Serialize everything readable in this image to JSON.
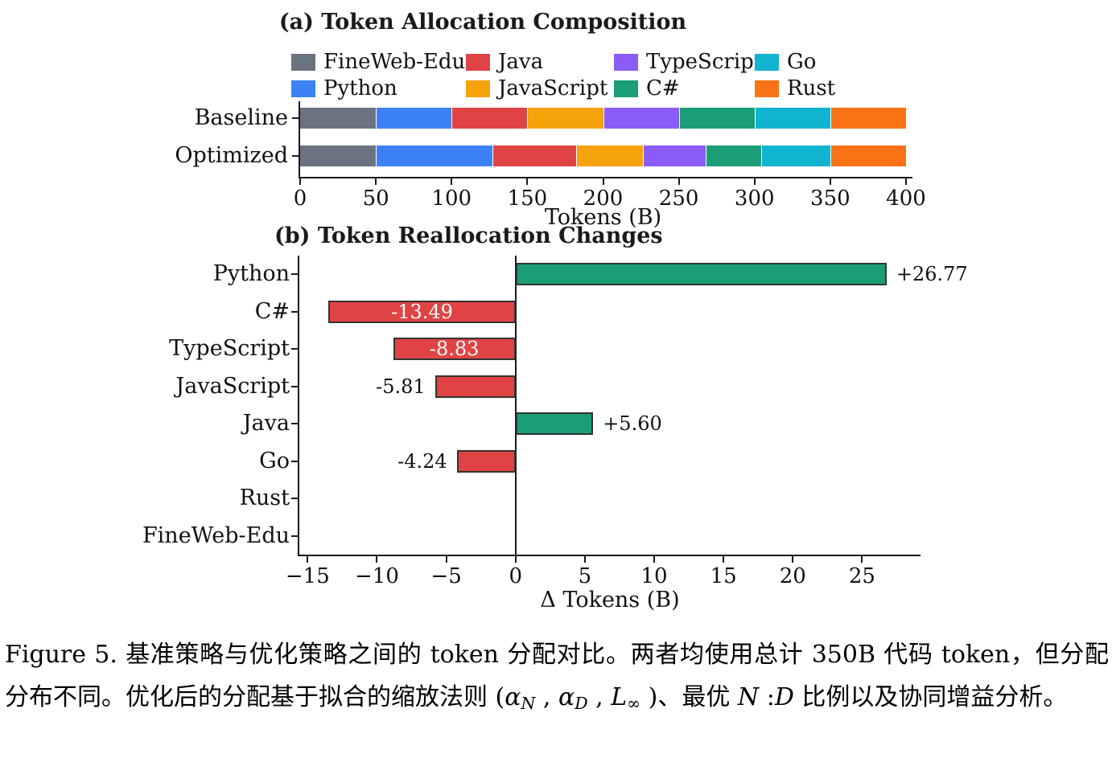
{
  "chart_data": [
    {
      "type": "bar",
      "stacked": true,
      "orientation": "horizontal",
      "title": "(a) Token Allocation Composition",
      "xlabel": "Tokens (B)",
      "xlim": [
        0,
        400
      ],
      "xticks": [
        0,
        50,
        100,
        150,
        200,
        250,
        300,
        350,
        400
      ],
      "xtick_labels": [
        "0",
        "50",
        "100",
        "150",
        "200",
        "250",
        "300",
        "350",
        "400"
      ],
      "categories": [
        "Baseline",
        "Optimized"
      ],
      "legend_position": "top",
      "legend_columns": 4,
      "series": [
        {
          "name": "FineWeb-Edu",
          "color": "#6b7280",
          "values": [
            50,
            50
          ]
        },
        {
          "name": "Python",
          "color": "#3c82f6",
          "values": [
            50,
            76.77
          ]
        },
        {
          "name": "Java",
          "color": "#e04343",
          "values": [
            50,
            55.6
          ]
        },
        {
          "name": "JavaScript",
          "color": "#f5a30b",
          "values": [
            50,
            44.19
          ]
        },
        {
          "name": "TypeScript",
          "color": "#8b5cf6",
          "values": [
            50,
            41.17
          ]
        },
        {
          "name": "C#",
          "color": "#1b9e77",
          "values": [
            50,
            36.51
          ]
        },
        {
          "name": "Go",
          "color": "#11b4ce",
          "values": [
            50,
            45.76
          ]
        },
        {
          "name": "Rust",
          "color": "#f97316",
          "values": [
            50,
            50
          ]
        }
      ]
    },
    {
      "type": "bar",
      "orientation": "horizontal",
      "title": "(b) Token Reallocation Changes",
      "xlabel": "Δ Tokens (B)",
      "xlim": [
        -15.6,
        29.1
      ],
      "xticks": [
        -15,
        -10,
        -5,
        0,
        5,
        10,
        15,
        20,
        25
      ],
      "xtick_labels": [
        "−15",
        "−10",
        "−5",
        "0",
        "5",
        "10",
        "15",
        "20",
        "25"
      ],
      "categories": [
        "Python",
        "C#",
        "TypeScript",
        "JavaScript",
        "Java",
        "Go",
        "Rust",
        "FineWeb-Edu"
      ],
      "values": [
        26.77,
        -13.49,
        -8.83,
        -5.81,
        5.6,
        -4.24,
        0,
        0
      ],
      "bar_labels": [
        "+26.77",
        "-13.49",
        "-8.83",
        "-5.81",
        "+5.60",
        "-4.24",
        "",
        ""
      ],
      "bar_label_placement": [
        "outside",
        "inside",
        "inside",
        "outside",
        "outside",
        "outside",
        "none",
        "none"
      ],
      "colors": {
        "positive": "#1b9e77",
        "negative": "#e04343",
        "edge": "#333333"
      },
      "zero_line": true,
      "grid": false
    }
  ],
  "caption": {
    "segments": [
      {
        "type": "text",
        "text": "Figure 5. 基准策略与优化策略之间的 token 分配对比。两者均使用总计 350B 代码 token，但分配分布不同。优化后的分配基于拟合的缩放法则 ("
      },
      {
        "type": "i",
        "text": "α"
      },
      {
        "type": "isub",
        "text": "N"
      },
      {
        "type": "text",
        "text": " , "
      },
      {
        "type": "i",
        "text": "α"
      },
      {
        "type": "isub",
        "text": "D"
      },
      {
        "type": "text",
        "text": " , "
      },
      {
        "type": "i",
        "text": "L"
      },
      {
        "type": "sub",
        "text": "∞"
      },
      {
        "type": "text",
        "text": " )、最优 "
      },
      {
        "type": "i",
        "text": "N"
      },
      {
        "type": "text",
        "text": " :"
      },
      {
        "type": "i",
        "text": "D"
      },
      {
        "type": "text",
        "text": " 比例以及协同增益分析。"
      }
    ]
  }
}
